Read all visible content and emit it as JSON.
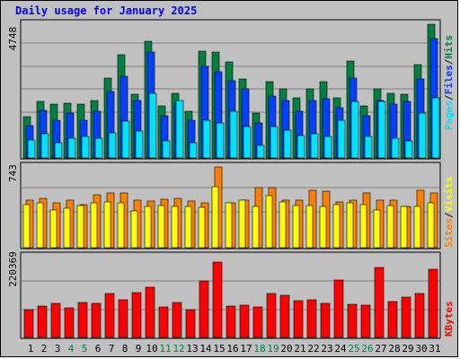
{
  "title": "Daily usage for January 2025",
  "colors": {
    "background": "#c0c0c0",
    "plot": "#c0c0c0",
    "hits": "#008040",
    "files": "#0040ff",
    "pages": "#00e0ff",
    "visits": "#ffff00",
    "sites": "#ff8000",
    "kbytes": "#ff0000",
    "title": "#0000ff",
    "weekend_day": "#008040"
  },
  "chart_data": [
    {
      "type": "bar",
      "panel": "hits",
      "ymax_label": "4748",
      "ylim": [
        0,
        4748
      ],
      "legend": [
        "Pages",
        "Files",
        "Hits"
      ],
      "categories": [
        "1",
        "2",
        "3",
        "4",
        "5",
        "6",
        "7",
        "8",
        "9",
        "10",
        "11",
        "12",
        "13",
        "14",
        "15",
        "16",
        "17",
        "18",
        "19",
        "20",
        "21",
        "22",
        "23",
        "24",
        "25",
        "26",
        "27",
        "28",
        "29",
        "30",
        "31"
      ],
      "weekend_days": [
        4,
        5,
        11,
        12,
        18,
        19,
        25,
        26
      ],
      "series": [
        {
          "name": "Hits",
          "values": [
            1450,
            2000,
            1900,
            1950,
            1900,
            2050,
            2850,
            3650,
            2250,
            4150,
            1850,
            2300,
            1650,
            3800,
            3750,
            3400,
            2800,
            1600,
            2700,
            2450,
            2150,
            2450,
            2700,
            2150,
            3450,
            1850,
            2450,
            2300,
            2250,
            3300,
            4748
          ]
        },
        {
          "name": "Files",
          "values": [
            1150,
            1700,
            1350,
            1600,
            1350,
            1650,
            2350,
            2900,
            2050,
            3750,
            1500,
            1950,
            1350,
            3250,
            3050,
            2750,
            2450,
            1250,
            2200,
            2050,
            1650,
            2050,
            2100,
            1800,
            2850,
            1500,
            2050,
            1900,
            2000,
            2800,
            4250
          ]
        },
        {
          "name": "Pages",
          "values": [
            650,
            850,
            550,
            700,
            750,
            700,
            900,
            1300,
            950,
            2300,
            600,
            2050,
            550,
            1350,
            1250,
            1650,
            1100,
            450,
            1100,
            1000,
            800,
            850,
            750,
            1350,
            2000,
            750,
            2000,
            700,
            600,
            1600,
            2150
          ]
        }
      ]
    },
    {
      "type": "bar",
      "panel": "visits",
      "ymax_label": "743",
      "ylim": [
        0,
        743
      ],
      "legend": [
        "Sites",
        "Visits"
      ],
      "categories": [
        "1",
        "2",
        "3",
        "4",
        "5",
        "6",
        "7",
        "8",
        "9",
        "10",
        "11",
        "12",
        "13",
        "14",
        "15",
        "16",
        "17",
        "18",
        "19",
        "20",
        "21",
        "22",
        "23",
        "24",
        "25",
        "26",
        "27",
        "28",
        "29",
        "30",
        "31"
      ],
      "series": [
        {
          "name": "Visits",
          "values": [
            400,
            410,
            350,
            360,
            390,
            410,
            420,
            410,
            340,
            380,
            390,
            380,
            380,
            370,
            560,
            410,
            440,
            380,
            480,
            420,
            390,
            390,
            380,
            400,
            410,
            400,
            350,
            390,
            380,
            380,
            410
          ]
        },
        {
          "name": "Sites",
          "values": [
            435,
            455,
            415,
            440,
            400,
            490,
            505,
            500,
            440,
            430,
            445,
            455,
            430,
            410,
            745,
            410,
            440,
            550,
            550,
            440,
            440,
            530,
            520,
            420,
            440,
            500,
            440,
            440,
            380,
            530,
            500
          ]
        }
      ]
    },
    {
      "type": "bar",
      "panel": "kbytes",
      "ymax_label": "220369",
      "ylim": [
        0,
        220369
      ],
      "legend": [
        "KBytes"
      ],
      "categories": [
        "1",
        "2",
        "3",
        "4",
        "5",
        "6",
        "7",
        "8",
        "9",
        "10",
        "11",
        "12",
        "13",
        "14",
        "15",
        "16",
        "17",
        "18",
        "19",
        "20",
        "21",
        "22",
        "23",
        "24",
        "25",
        "26",
        "27",
        "28",
        "29",
        "30",
        "31"
      ],
      "series": [
        {
          "name": "KBytes",
          "values": [
            77000,
            85000,
            93000,
            82000,
            95000,
            92000,
            120000,
            103000,
            123000,
            136000,
            83000,
            96000,
            75000,
            154000,
            205000,
            86000,
            88000,
            84000,
            121000,
            116000,
            101000,
            103000,
            93000,
            157000,
            90000,
            88000,
            190000,
            97000,
            110000,
            120000,
            186000
          ]
        }
      ]
    }
  ]
}
